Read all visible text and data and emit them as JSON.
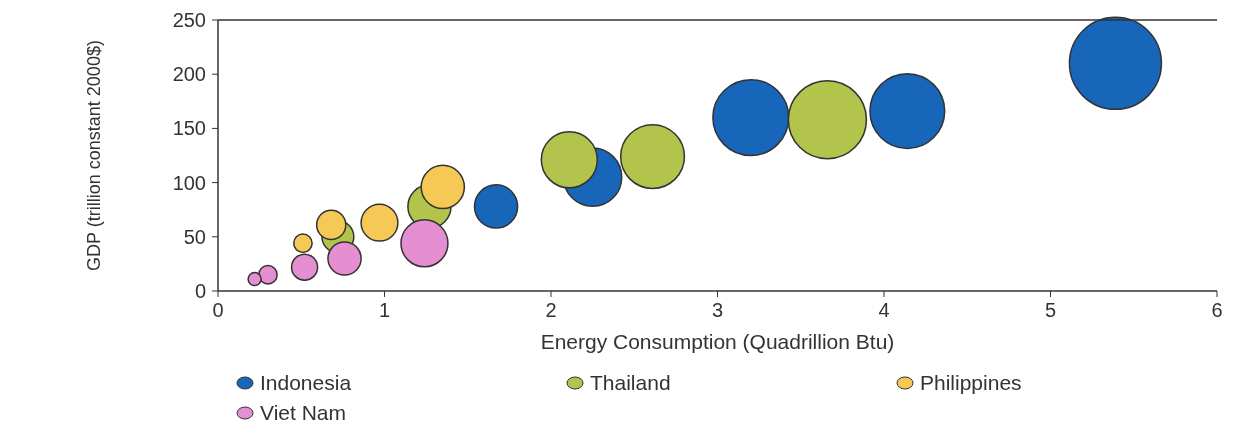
{
  "chart_data": {
    "type": "bubble",
    "xlabel": "Energy Consumption (Quadrillion Btu)",
    "ylabel": "GDP (trillion constant 2000$)",
    "xlim": [
      0,
      6
    ],
    "xticks": [
      0,
      1,
      2,
      3,
      4,
      5,
      6
    ],
    "ylim": [
      0,
      250
    ],
    "yticks": [
      0,
      50,
      100,
      150,
      200,
      250
    ],
    "grid": false,
    "legend": "bottom",
    "series": [
      {
        "name": "Indonesia",
        "color": "#1766b9",
        "x": [
          5.39,
          4.14,
          3.2,
          2.25,
          1.67
        ],
        "values": [
          210,
          166,
          160,
          105,
          78
        ],
        "sizes": [
          1,
          0.66,
          0.68,
          0.4,
          0.22
        ]
      },
      {
        "name": "Thailand",
        "color": "#b3c44c",
        "x": [
          3.66,
          2.61,
          2.11,
          1.27,
          0.72
        ],
        "values": [
          158,
          124,
          121,
          78,
          50
        ],
        "sizes": [
          0.72,
          0.48,
          0.37,
          0.22,
          0.12
        ]
      },
      {
        "name": "Philippines",
        "color": "#f6c956",
        "x": [
          1.35,
          0.97,
          0.68,
          0.51
        ],
        "values": [
          96,
          63,
          61,
          44
        ],
        "sizes": [
          0.22,
          0.16,
          0.1,
          0.04
        ]
      },
      {
        "name": "Viet Nam",
        "color": "#e68ed2",
        "x": [
          1.24,
          0.76,
          0.52,
          0.3,
          0.22
        ],
        "values": [
          44,
          30,
          22,
          15,
          11
        ],
        "sizes": [
          0.26,
          0.13,
          0.08,
          0.04,
          0.02
        ]
      }
    ]
  }
}
